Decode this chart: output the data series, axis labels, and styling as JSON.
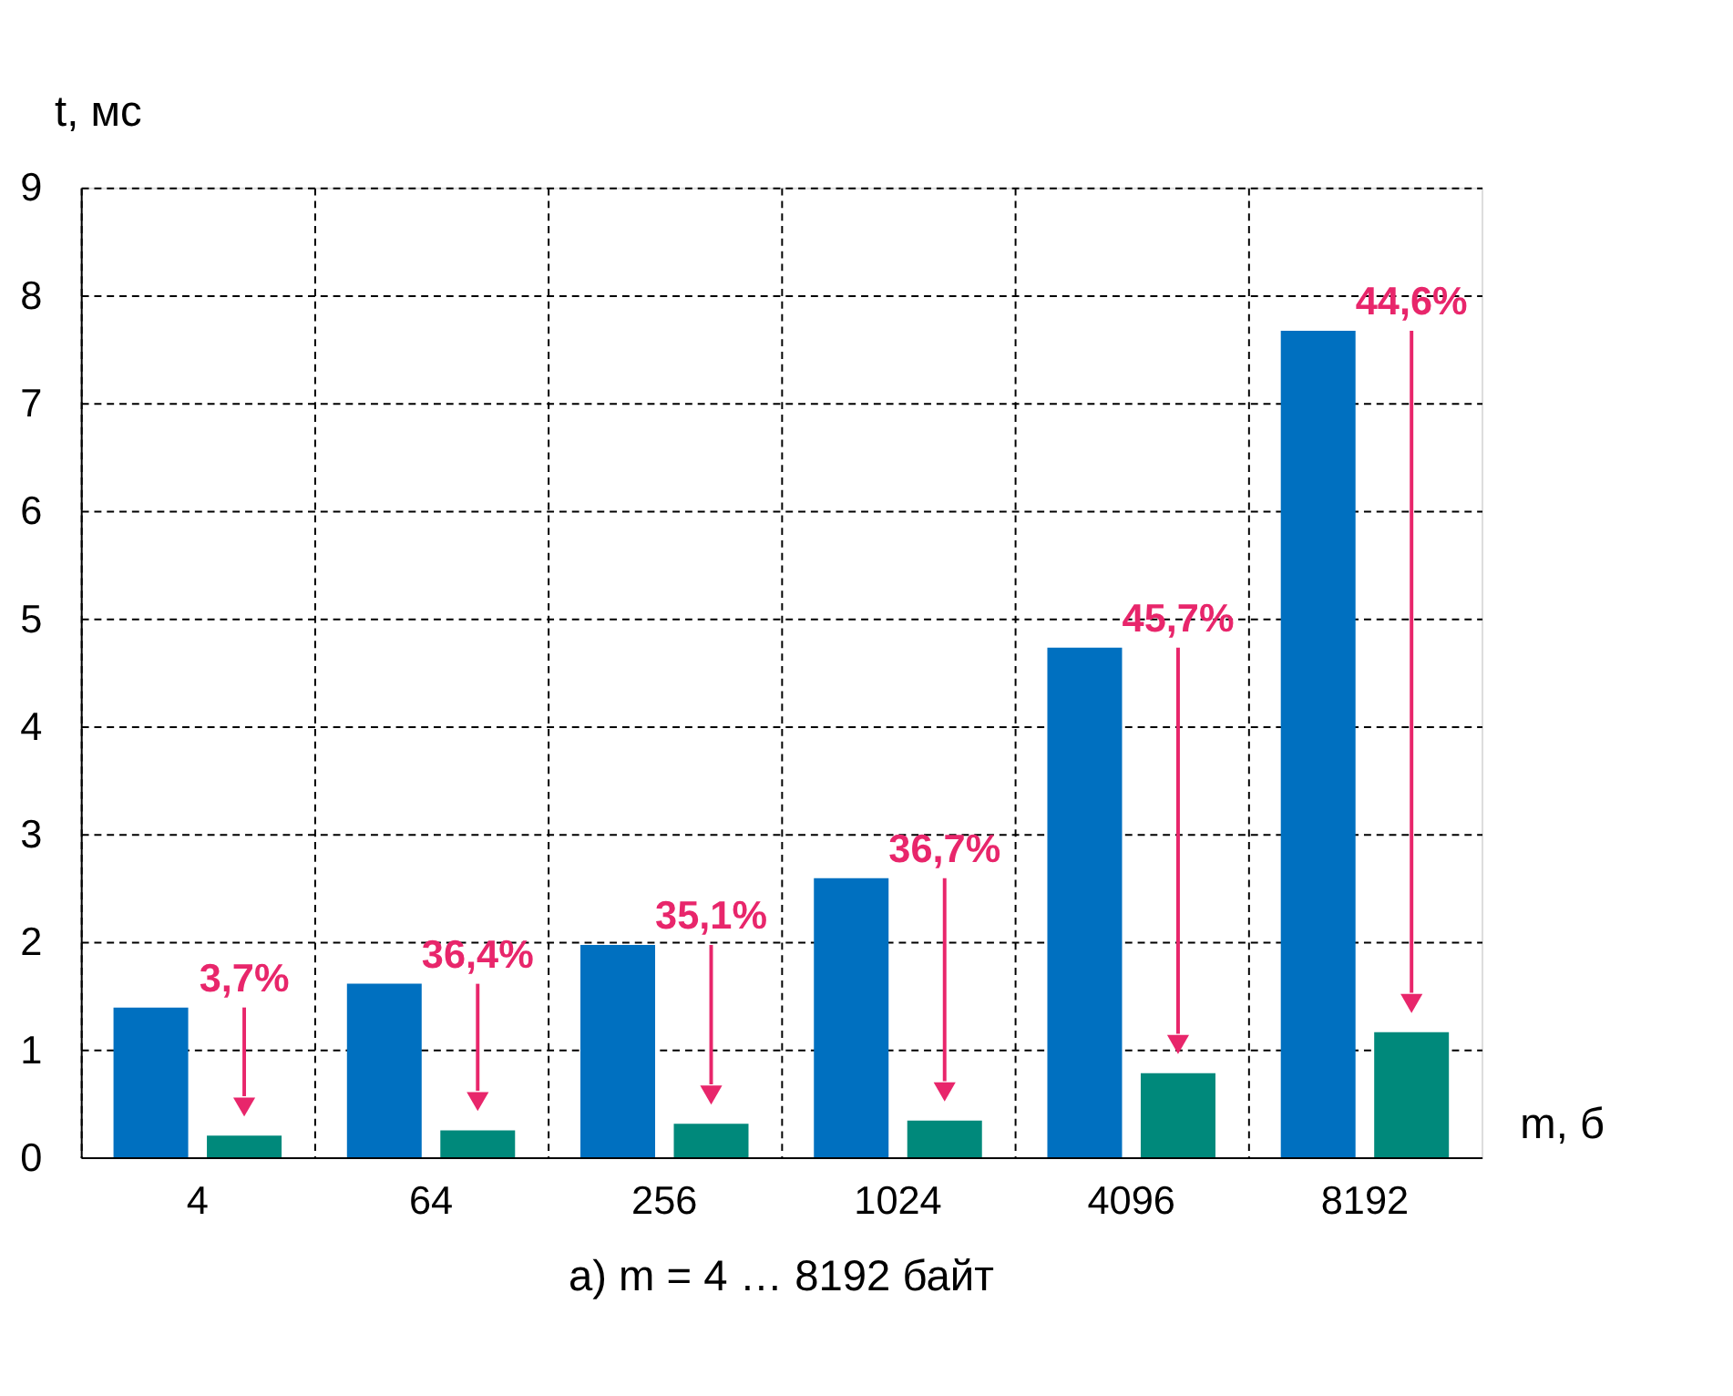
{
  "chart_data": {
    "type": "bar",
    "title": "а) m = 4 … 8192 байт",
    "xlabel": "m, б",
    "ylabel": "t, мс",
    "categories": [
      "4",
      "64",
      "256",
      "1024",
      "4096",
      "8192"
    ],
    "series": [
      {
        "color": "#0070c0",
        "values": [
          1.39,
          1.61,
          1.97,
          2.59,
          4.73,
          7.67
        ]
      },
      {
        "color": "#00897b",
        "values": [
          0.2,
          0.25,
          0.31,
          0.34,
          0.78,
          1.16
        ]
      }
    ],
    "annotations": [
      "3,7%",
      "36,4%",
      "35,1%",
      "36,7%",
      "45,7%",
      "44,6%"
    ],
    "ylim": [
      0,
      9
    ],
    "yticks": [
      0,
      1,
      2,
      3,
      4,
      5,
      6,
      7,
      8,
      9
    ],
    "grid": true
  }
}
